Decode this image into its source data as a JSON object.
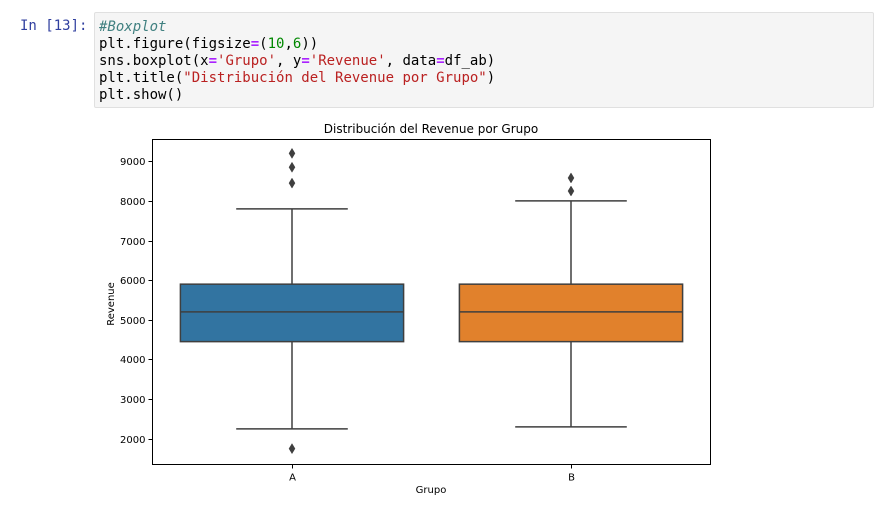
{
  "cell": {
    "prompt": "In [13]:",
    "lines": [
      [
        {
          "t": "#Boxplot",
          "c": "c-comment"
        }
      ],
      [
        {
          "t": "plt.figure(figsize",
          "c": ""
        },
        {
          "t": "=",
          "c": "c-op"
        },
        {
          "t": "(",
          "c": ""
        },
        {
          "t": "10",
          "c": "c-num"
        },
        {
          "t": ",",
          "c": ""
        },
        {
          "t": "6",
          "c": "c-num"
        },
        {
          "t": "))",
          "c": ""
        }
      ],
      [
        {
          "t": "sns.boxplot(x",
          "c": ""
        },
        {
          "t": "=",
          "c": "c-op"
        },
        {
          "t": "'Grupo'",
          "c": "c-str"
        },
        {
          "t": ", y",
          "c": ""
        },
        {
          "t": "=",
          "c": "c-op"
        },
        {
          "t": "'Revenue'",
          "c": "c-str"
        },
        {
          "t": ", data",
          "c": ""
        },
        {
          "t": "=",
          "c": "c-op"
        },
        {
          "t": "df_ab)",
          "c": ""
        }
      ],
      [
        {
          "t": "plt.title(",
          "c": ""
        },
        {
          "t": "\"Distribución del Revenue por Grupo\"",
          "c": "c-str"
        },
        {
          "t": ")",
          "c": ""
        }
      ],
      [
        {
          "t": "plt.show()",
          "c": ""
        }
      ]
    ]
  },
  "chart_data": {
    "type": "box",
    "title": "Distribución del Revenue por Grupo",
    "xlabel": "Grupo",
    "ylabel": "Revenue",
    "categories": [
      "A",
      "B"
    ],
    "colors": [
      "#3274a1",
      "#e1812c"
    ],
    "ylim": [
      1350,
      9550
    ],
    "yticks": [
      2000,
      3000,
      4000,
      5000,
      6000,
      7000,
      8000,
      9000
    ],
    "boxes": [
      {
        "name": "A",
        "whisker_low": 2250,
        "q1": 4450,
        "median": 5200,
        "q3": 5900,
        "whisker_high": 7800,
        "outliers": [
          1750,
          8450,
          8850,
          9200
        ]
      },
      {
        "name": "B",
        "whisker_low": 2300,
        "q1": 4450,
        "median": 5200,
        "q3": 5900,
        "whisker_high": 8000,
        "outliers": [
          8250,
          8580
        ]
      }
    ]
  }
}
